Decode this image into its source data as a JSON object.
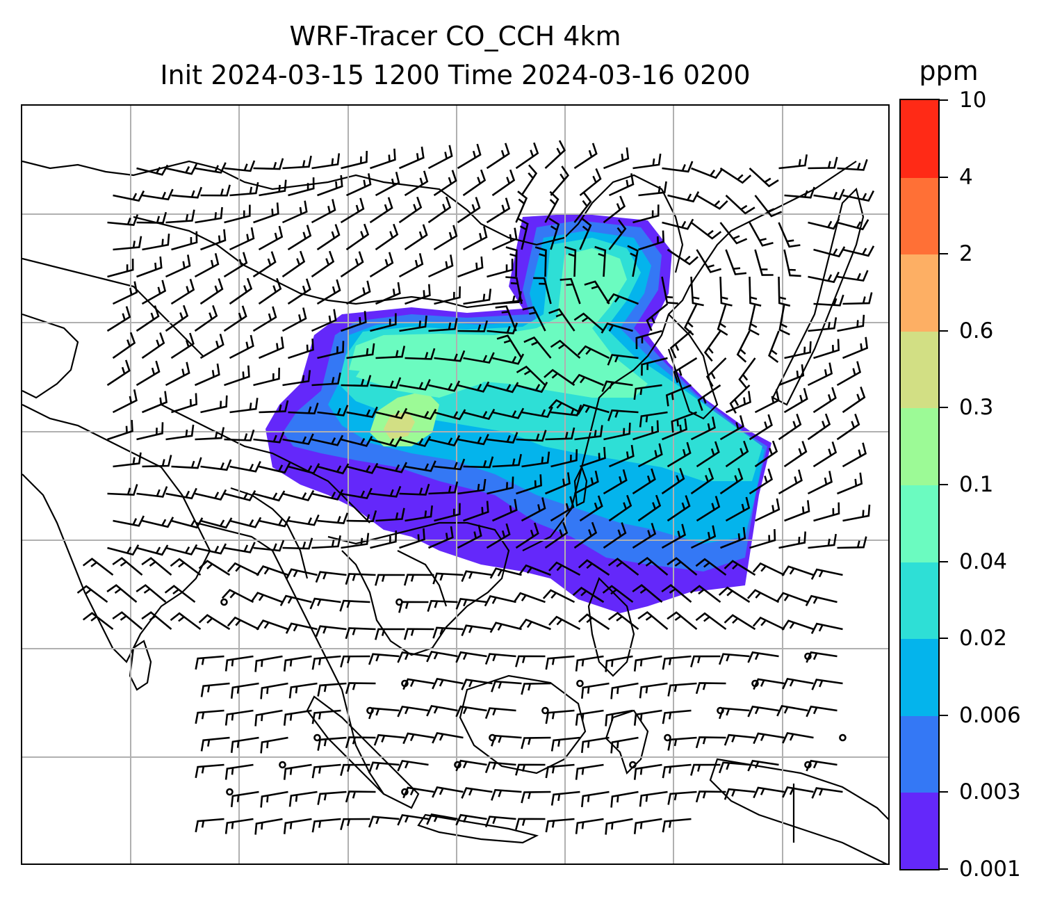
{
  "title": {
    "line1": "WRF-Tracer CO_CCH 4km",
    "line2": "Init 2024-03-15 1200 Time 2024-03-16 0200"
  },
  "colorbar": {
    "unit": "ppm",
    "levels": [
      "0.001",
      "0.003",
      "0.006",
      "0.02",
      "0.04",
      "0.1",
      "0.3",
      "0.6",
      "2",
      "4",
      "10"
    ],
    "colors": [
      "#6428fa",
      "#3478f5",
      "#04b4ec",
      "#2edfd6",
      "#6bfbc0",
      "#9cfa96",
      "#d2df84",
      "#fdaf64",
      "#ff7036",
      "#ff2a16"
    ]
  },
  "map": {
    "gridlines": true,
    "grid_color": "#b0b0b0",
    "coast_color": "#000000"
  }
}
